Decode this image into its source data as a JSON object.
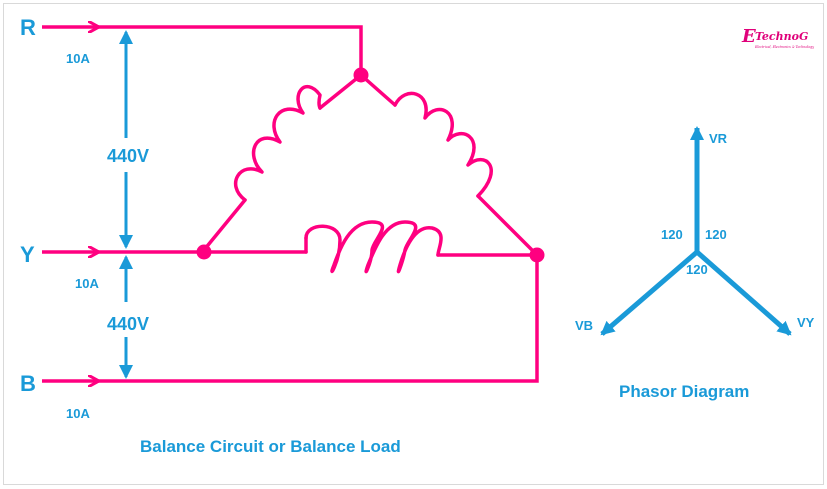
{
  "colors": {
    "circuit": "#ff0080",
    "label": "#1a9ad8",
    "logo": "#e0007a"
  },
  "circuit": {
    "phases": [
      {
        "name": "R",
        "current": "10A"
      },
      {
        "name": "Y",
        "current": "10A"
      },
      {
        "name": "B",
        "current": "10A"
      }
    ],
    "voltage_ry": "440V",
    "voltage_yb": "440V",
    "caption": "Balance Circuit or Balance Load"
  },
  "phasor": {
    "vectors": [
      "VR",
      "VY",
      "VB"
    ],
    "angles": [
      "120",
      "120",
      "120"
    ],
    "caption": "Phasor Diagram"
  },
  "logo": {
    "initial": "E",
    "text": "TechnoG",
    "tagline": "Electrical, Electronics & Technology"
  }
}
